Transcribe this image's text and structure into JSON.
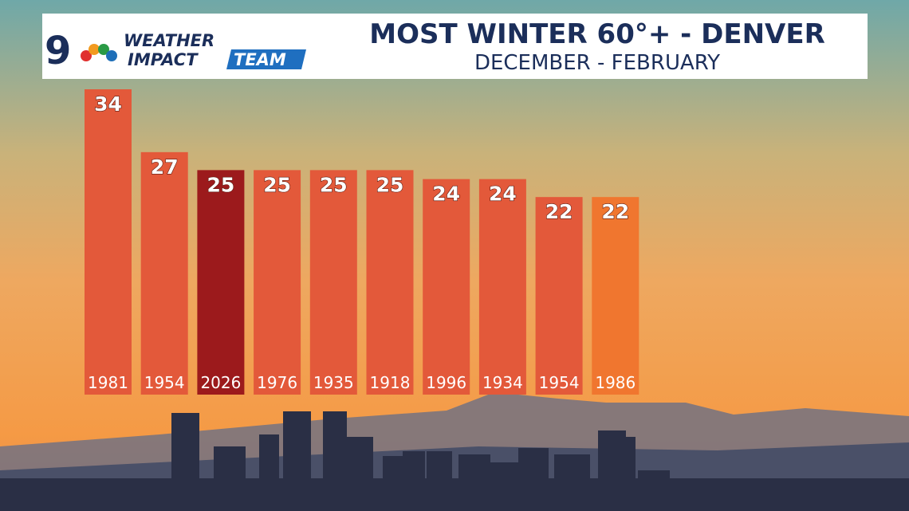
{
  "chart_data": {
    "type": "bar",
    "title": "MOST WINTER 60°+ - DENVER",
    "subtitle": "DECEMBER - FEBRUARY",
    "logo": {
      "number": "9",
      "line1": "WEATHER",
      "line2": "IMPACT",
      "line3": "TEAM"
    },
    "categories": [
      "1981",
      "1954",
      "2026",
      "1976",
      "1935",
      "1918",
      "1996",
      "1934",
      "1954",
      "1986"
    ],
    "values": [
      34,
      27,
      25,
      25,
      25,
      25,
      24,
      24,
      22,
      22
    ],
    "colors": [
      "#e3593a",
      "#e3593a",
      "#9c1a1c",
      "#e3593a",
      "#e3593a",
      "#e3593a",
      "#e3593a",
      "#e3593a",
      "#e3593a",
      "#f0762f"
    ]
  }
}
